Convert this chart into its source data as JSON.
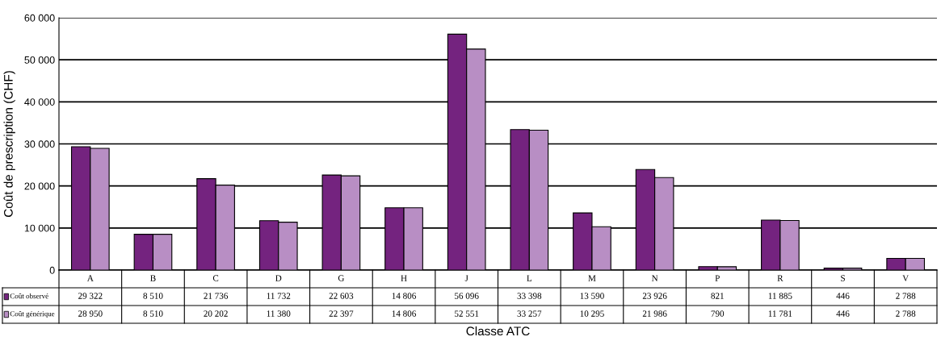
{
  "chart_data": {
    "type": "bar",
    "xlabel": "Classe ATC",
    "ylabel": "Coût de prescription (CHF)",
    "categories": [
      "A",
      "B",
      "C",
      "D",
      "G",
      "H",
      "J",
      "L",
      "M",
      "N",
      "P",
      "R",
      "S",
      "V"
    ],
    "series": [
      {
        "name": "Coût observé",
        "color": "#74237f",
        "values": [
          29322,
          8510,
          21736,
          11732,
          22603,
          14806,
          56096,
          33398,
          13590,
          23926,
          821,
          11885,
          446,
          2788
        ],
        "value_labels": [
          "29 322",
          "8 510",
          "21 736",
          "11 732",
          "22 603",
          "14 806",
          "56 096",
          "33 398",
          "13 590",
          "23 926",
          "821",
          "11 885",
          "446",
          "2 788"
        ]
      },
      {
        "name": "Coût générique",
        "color": "#b88ec4",
        "values": [
          28950,
          8510,
          20202,
          11380,
          22397,
          14806,
          52551,
          33257,
          10295,
          21986,
          790,
          11781,
          446,
          2788
        ],
        "value_labels": [
          "28 950",
          "8 510",
          "20 202",
          "11 380",
          "22 397",
          "14 806",
          "52 551",
          "33 257",
          "10 295",
          "21 986",
          "790",
          "11 781",
          "446",
          "2 788"
        ]
      }
    ],
    "ylim": [
      0,
      60000
    ],
    "yticks": [
      0,
      {
        "value": 10000,
        "label": "10 000"
      },
      {
        "value": 20000,
        "label": "20 000"
      },
      {
        "value": 30000,
        "label": "30 000"
      },
      {
        "value": 40000,
        "label": "40 000"
      },
      {
        "value": 50000,
        "label": "50 000"
      },
      {
        "value": 60000,
        "label": "60 000"
      }
    ],
    "grid": "y",
    "legend": "bottom left"
  }
}
